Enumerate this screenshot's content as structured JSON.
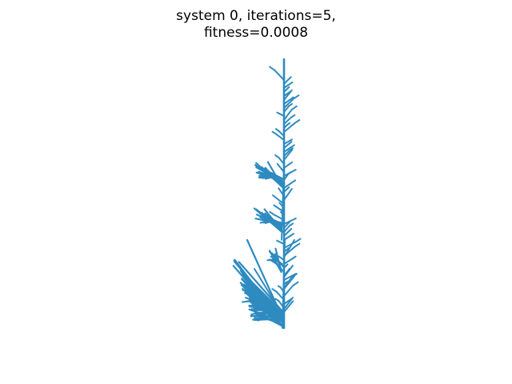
{
  "figure": {
    "title_line1": "system 0, iterations=5,",
    "title_line2": "fitness=0.0008",
    "stroke_color": "#2e8bc0"
  }
}
